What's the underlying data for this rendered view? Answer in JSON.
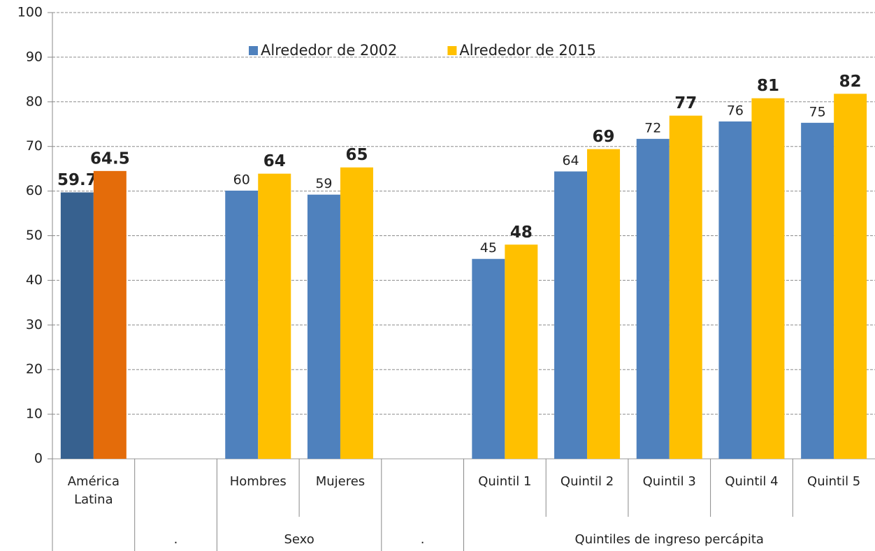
{
  "chart_data": {
    "type": "bar",
    "categories": [
      "América Latina",
      null,
      "Hombres",
      "Mujeres",
      null,
      "Quintil 1",
      "Quintil 2",
      "Quintil 3",
      "Quintil 4",
      "Quintil 5"
    ],
    "groups": [
      {
        "label": null,
        "size": 1
      },
      {
        "label": ".",
        "size": 1
      },
      {
        "label": "Sexo",
        "size": 2
      },
      {
        "label": ".",
        "size": 1
      },
      {
        "label": "Quintiles de ingreso percápita",
        "size": 5
      }
    ],
    "series": [
      {
        "name": "Alrededor de 2002",
        "color": "#4f81bd",
        "colors": [
          "#37618f",
          null,
          null,
          null,
          null,
          null,
          null,
          null,
          null,
          null
        ],
        "values": [
          59.7,
          null,
          60.1,
          59.2,
          null,
          44.8,
          64.4,
          71.7,
          75.6,
          75.3
        ],
        "value_labels": [
          "59.7",
          null,
          "60",
          "59",
          null,
          "45",
          "64",
          "72",
          "76",
          "75"
        ]
      },
      {
        "name": "Alrededor de 2015",
        "color": "#ffc000",
        "colors": [
          "#e46c0a",
          null,
          null,
          null,
          null,
          null,
          null,
          null,
          null,
          null
        ],
        "values": [
          64.5,
          null,
          63.9,
          65.3,
          null,
          48.0,
          69.4,
          76.9,
          80.8,
          81.8
        ],
        "value_labels": [
          "64.5",
          null,
          "64",
          "65",
          null,
          "48",
          "69",
          "77",
          "81",
          "82"
        ]
      }
    ],
    "ylim": [
      0,
      100
    ],
    "yticks": [
      0,
      10,
      20,
      30,
      40,
      50,
      60,
      70,
      80,
      90,
      100
    ],
    "grid": true,
    "legend": "top"
  }
}
